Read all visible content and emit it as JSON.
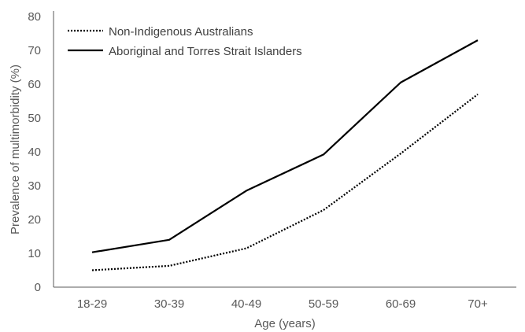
{
  "chart_data": {
    "type": "line",
    "title": "",
    "xlabel": "Age (years)",
    "ylabel": "Prevalence of multimorbidity (%)",
    "categories": [
      "18-29",
      "30-39",
      "40-49",
      "50-59",
      "60-69",
      "70+"
    ],
    "ylim": [
      0,
      80
    ],
    "yticks": [
      "0",
      "10",
      "20",
      "30",
      "40",
      "50",
      "60",
      "70",
      "80"
    ],
    "grid": false,
    "legend_position": "top-left",
    "series": [
      {
        "name": "Non-Indigenous Australians",
        "values": [
          5,
          6.3,
          11.5,
          22.8,
          39.5,
          57
        ],
        "style": "dotted",
        "color": "#000000"
      },
      {
        "name": "Aboriginal and Torres Strait Islanders",
        "values": [
          10.3,
          14,
          28.5,
          39.2,
          60.5,
          73
        ],
        "style": "solid",
        "color": "#000000"
      }
    ]
  }
}
